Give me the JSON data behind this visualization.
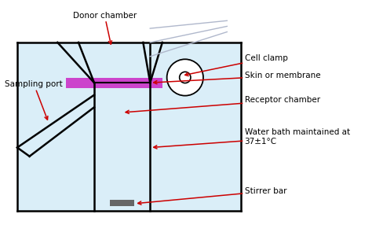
{
  "background_color": "#ffffff",
  "light_blue": "#daeef8",
  "line_color": "#000000",
  "purple_color": "#cc44cc",
  "gray_color": "#666666",
  "clamp_gray": "#b0b8cc",
  "arrow_color": "#cc0000",
  "label_fontsize": 7.5,
  "lw": 1.8,
  "labels": {
    "donor_chamber": "Donor chamber",
    "sampling_port": "Sampling port",
    "cell_clamp": "Cell clamp",
    "skin_membrane": "Skin or membrane",
    "receptor_chamber": "Receptor chamber",
    "water_bath": "Water bath maintained at\n37±1°C",
    "stirrer_bar": "Stirrer bar"
  }
}
